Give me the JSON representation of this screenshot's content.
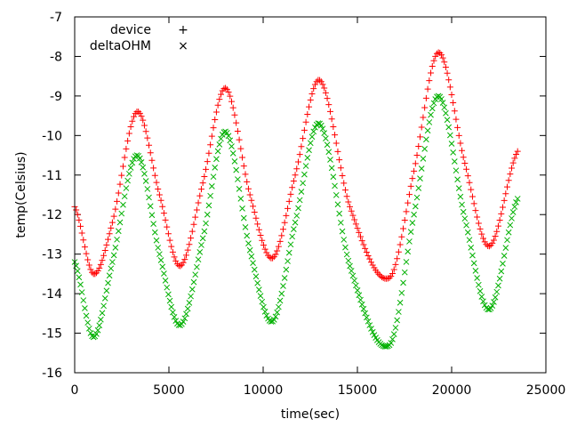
{
  "chart_data": {
    "type": "line",
    "title": "",
    "xlabel": "time(sec)",
    "ylabel": "temp(Celsius)",
    "xlim": [
      0,
      25000
    ],
    "ylim": [
      -16,
      -7
    ],
    "x_ticks": [
      0,
      5000,
      10000,
      15000,
      20000,
      25000
    ],
    "y_ticks": [
      -16,
      -15,
      -14,
      -13,
      -12,
      -11,
      -10,
      -9,
      -8,
      -7
    ],
    "x_tick_labels": [
      "0",
      "5000",
      "10000",
      "15000",
      "20000",
      "25000"
    ],
    "y_tick_labels": [
      "-16",
      "-15",
      "-14",
      "-13",
      "-12",
      "-11",
      "-10",
      "-9",
      "-8",
      "-7"
    ],
    "grid": false,
    "legend_position": "top-left",
    "series": [
      {
        "name": "device",
        "marker": "plus",
        "color": "#ff0000",
        "points": [
          [
            0,
            -11.8
          ],
          [
            1000,
            -13.5
          ],
          [
            2000,
            -12.2
          ],
          [
            3300,
            -9.4
          ],
          [
            4500,
            -11.5
          ],
          [
            5600,
            -13.3
          ],
          [
            6800,
            -11.2
          ],
          [
            8000,
            -8.8
          ],
          [
            9300,
            -11.5
          ],
          [
            10500,
            -13.1
          ],
          [
            11700,
            -11.0
          ],
          [
            13000,
            -8.6
          ],
          [
            14600,
            -11.8
          ],
          [
            16700,
            -13.6
          ],
          [
            18000,
            -10.9
          ],
          [
            19300,
            -7.9
          ],
          [
            20700,
            -10.7
          ],
          [
            22000,
            -12.8
          ],
          [
            23500,
            -10.4
          ]
        ]
      },
      {
        "name": "deltaOHM",
        "marker": "cross",
        "color": "#00b000",
        "points": [
          [
            0,
            -13.2
          ],
          [
            1000,
            -15.1
          ],
          [
            2000,
            -13.2
          ],
          [
            3300,
            -10.5
          ],
          [
            4500,
            -13.0
          ],
          [
            5600,
            -14.8
          ],
          [
            6800,
            -12.6
          ],
          [
            8000,
            -9.9
          ],
          [
            9300,
            -12.9
          ],
          [
            10500,
            -14.7
          ],
          [
            11700,
            -12.2
          ],
          [
            13000,
            -9.7
          ],
          [
            14600,
            -13.3
          ],
          [
            16700,
            -15.3
          ],
          [
            18000,
            -12.0
          ],
          [
            19300,
            -9.0
          ],
          [
            20700,
            -12.1
          ],
          [
            22000,
            -14.4
          ],
          [
            23500,
            -11.6
          ]
        ]
      }
    ]
  }
}
